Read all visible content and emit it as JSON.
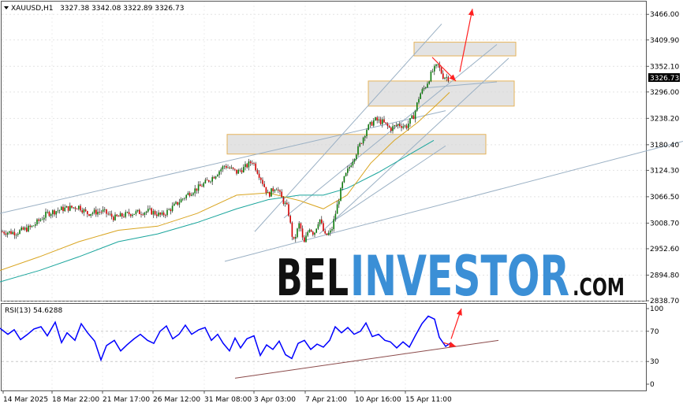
{
  "header": {
    "symbol": "XAUUSD,H1",
    "ohlc": "3327.38 3342.08 3322.89 3326.73"
  },
  "price_axis": {
    "ticks": [
      "3466.00",
      "3409.90",
      "3352.10",
      "3296.00",
      "3238.20",
      "3180.40",
      "3124.30",
      "3066.50",
      "3008.70",
      "2952.60",
      "2894.80",
      "2838.70"
    ],
    "current_price": "3326.73"
  },
  "rsi": {
    "label": "RSI(13) 54.6288",
    "ticks": [
      "100",
      "70",
      "30",
      "0"
    ]
  },
  "time_axis": {
    "ticks": [
      "14 Mar 2025",
      "18 Mar 22:00",
      "21 Mar 17:00",
      "26 Mar 12:00",
      "31 Mar 08:00",
      "3 Apr 03:00",
      "7 Apr 21:00",
      "10 Apr 16:00",
      "15 Apr 11:00"
    ]
  },
  "watermark": {
    "part1": "BEL",
    "part2": "INVESTOR",
    "part3": ".COM"
  },
  "colors": {
    "bull": "#0b7a0b",
    "bear": "#d00000",
    "ma_fast": "#d9a521",
    "ma_slow": "#1aa59c",
    "rsi": "#0000ff",
    "arrow": "#ff2020",
    "zone_stroke": "#e6b35a",
    "zone_fill": "#d9d9d9",
    "trendline": "#9ab0c4",
    "rsi_trend": "#8b4a4a"
  },
  "chart_data": {
    "type": "candlestick",
    "symbol": "XAUUSD,H1",
    "ylim": [
      2838.7,
      3494
    ],
    "rsi_ylim": [
      0,
      100
    ],
    "x_ticks": [
      "14 Mar 2025",
      "18 Mar 22:00",
      "21 Mar 17:00",
      "26 Mar 12:00",
      "31 Mar 08:00",
      "3 Apr 03:00",
      "7 Apr 21:00",
      "10 Apr 16:00",
      "15 Apr 11:00"
    ],
    "close_path": [
      [
        0,
        2990
      ],
      [
        20,
        2988
      ],
      [
        40,
        3000
      ],
      [
        60,
        3030
      ],
      [
        80,
        3040
      ],
      [
        100,
        3045
      ],
      [
        110,
        3030
      ],
      [
        130,
        3035
      ],
      [
        145,
        3020
      ],
      [
        165,
        3030
      ],
      [
        190,
        3035
      ],
      [
        205,
        3025
      ],
      [
        220,
        3045
      ],
      [
        240,
        3075
      ],
      [
        255,
        3090
      ],
      [
        270,
        3110
      ],
      [
        285,
        3135
      ],
      [
        300,
        3120
      ],
      [
        310,
        3130
      ],
      [
        320,
        3145
      ],
      [
        330,
        3110
      ],
      [
        340,
        3070
      ],
      [
        350,
        3090
      ],
      [
        358,
        3060
      ],
      [
        365,
        3040
      ],
      [
        372,
        2965
      ],
      [
        380,
        3010
      ],
      [
        385,
        2960
      ],
      [
        392,
        3000
      ],
      [
        398,
        2985
      ],
      [
        405,
        3020
      ],
      [
        412,
        2980
      ],
      [
        420,
        2990
      ],
      [
        428,
        3050
      ],
      [
        435,
        3100
      ],
      [
        445,
        3140
      ],
      [
        455,
        3175
      ],
      [
        465,
        3215
      ],
      [
        475,
        3235
      ],
      [
        485,
        3230
      ],
      [
        495,
        3215
      ],
      [
        505,
        3225
      ],
      [
        515,
        3220
      ],
      [
        525,
        3245
      ],
      [
        532,
        3290
      ],
      [
        540,
        3310
      ],
      [
        548,
        3340
      ],
      [
        555,
        3355
      ],
      [
        562,
        3330
      ],
      [
        570,
        3327
      ]
    ],
    "ma_fast": [
      [
        0,
        2905
      ],
      [
        50,
        2935
      ],
      [
        100,
        2968
      ],
      [
        150,
        2993
      ],
      [
        200,
        3002
      ],
      [
        250,
        3030
      ],
      [
        300,
        3070
      ],
      [
        340,
        3075
      ],
      [
        380,
        3058
      ],
      [
        410,
        3040
      ],
      [
        440,
        3070
      ],
      [
        470,
        3140
      ],
      [
        500,
        3190
      ],
      [
        530,
        3230
      ],
      [
        550,
        3262
      ],
      [
        570,
        3295
      ]
    ],
    "ma_slow": [
      [
        0,
        2880
      ],
      [
        50,
        2905
      ],
      [
        100,
        2935
      ],
      [
        150,
        2968
      ],
      [
        200,
        2985
      ],
      [
        250,
        3010
      ],
      [
        300,
        3040
      ],
      [
        340,
        3060
      ],
      [
        380,
        3070
      ],
      [
        410,
        3070
      ],
      [
        440,
        3085
      ],
      [
        480,
        3120
      ],
      [
        520,
        3160
      ],
      [
        550,
        3190
      ]
    ],
    "zones": [
      {
        "x": [
          288,
          616
        ],
        "y": [
          3160,
          3203
        ]
      },
      {
        "x": [
          467,
          652
        ],
        "y": [
          3265,
          3320
        ]
      },
      {
        "x": [
          525,
          654
        ],
        "y": [
          3375,
          3405
        ]
      }
    ],
    "channels": [
      {
        "from": [
          0,
          3030
        ],
        "to": [
          565,
          3255
        ]
      },
      {
        "from": [
          285,
          2925
        ],
        "to": [
          866,
          3188
        ]
      },
      {
        "from": [
          323,
          2990
        ],
        "to": [
          560,
          3445
        ]
      },
      {
        "from": [
          360,
          3020
        ],
        "to": [
          630,
          3400
        ]
      },
      {
        "from": [
          405,
          2985
        ],
        "to": [
          645,
          3370
        ]
      },
      {
        "from": [
          420,
          3010
        ],
        "to": [
          565,
          3178
        ]
      },
      {
        "from": [
          540,
          3305
        ],
        "to": [
          630,
          3318
        ]
      }
    ],
    "arrows": [
      {
        "from": [
          583,
          3340
        ],
        "to": [
          599,
          3478
        ]
      },
      {
        "from": [
          548,
          3372
        ],
        "to": [
          578,
          3320
        ]
      }
    ],
    "rsi_series": [
      [
        0,
        74
      ],
      [
        10,
        66
      ],
      [
        18,
        72
      ],
      [
        26,
        59
      ],
      [
        35,
        66
      ],
      [
        43,
        73
      ],
      [
        52,
        76
      ],
      [
        60,
        64
      ],
      [
        70,
        82
      ],
      [
        78,
        55
      ],
      [
        85,
        68
      ],
      [
        95,
        58
      ],
      [
        103,
        80
      ],
      [
        111,
        68
      ],
      [
        120,
        57
      ],
      [
        128,
        32
      ],
      [
        135,
        51
      ],
      [
        145,
        58
      ],
      [
        153,
        44
      ],
      [
        161,
        52
      ],
      [
        170,
        60
      ],
      [
        178,
        66
      ],
      [
        187,
        58
      ],
      [
        195,
        54
      ],
      [
        203,
        70
      ],
      [
        211,
        77
      ],
      [
        219,
        60
      ],
      [
        227,
        66
      ],
      [
        235,
        78
      ],
      [
        243,
        66
      ],
      [
        252,
        72
      ],
      [
        260,
        75
      ],
      [
        268,
        58
      ],
      [
        276,
        66
      ],
      [
        283,
        54
      ],
      [
        291,
        44
      ],
      [
        298,
        61
      ],
      [
        305,
        48
      ],
      [
        313,
        60
      ],
      [
        322,
        64
      ],
      [
        330,
        38
      ],
      [
        338,
        52
      ],
      [
        346,
        46
      ],
      [
        354,
        57
      ],
      [
        362,
        39
      ],
      [
        370,
        34
      ],
      [
        378,
        54
      ],
      [
        386,
        58
      ],
      [
        394,
        46
      ],
      [
        402,
        53
      ],
      [
        410,
        49
      ],
      [
        418,
        58
      ],
      [
        425,
        76
      ],
      [
        433,
        68
      ],
      [
        441,
        75
      ],
      [
        449,
        66
      ],
      [
        457,
        70
      ],
      [
        464,
        81
      ],
      [
        472,
        63
      ],
      [
        480,
        66
      ],
      [
        488,
        58
      ],
      [
        495,
        56
      ],
      [
        503,
        48
      ],
      [
        511,
        56
      ],
      [
        519,
        49
      ],
      [
        527,
        65
      ],
      [
        535,
        80
      ],
      [
        543,
        90
      ],
      [
        551,
        86
      ],
      [
        557,
        62
      ],
      [
        565,
        50
      ],
      [
        572,
        55
      ]
    ],
    "rsi_trend": {
      "from": [
        298,
        8
      ],
      "to": [
        632,
        58
      ]
    },
    "rsi_arrows": [
      {
        "from": [
          562,
          55
        ],
        "to": [
          578,
          50
        ]
      },
      {
        "from": [
          572,
          60
        ],
        "to": [
          585,
          100
        ]
      }
    ]
  }
}
